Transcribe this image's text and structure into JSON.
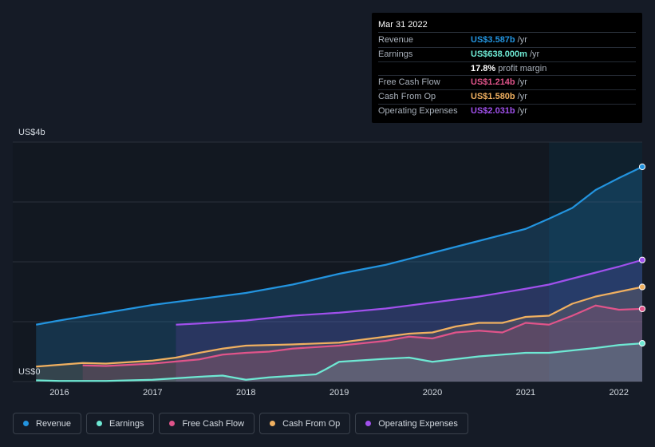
{
  "tooltip": {
    "date": "Mar 31 2022",
    "rows": [
      {
        "label": "Revenue",
        "value": "US$3.587b",
        "unit": "/yr",
        "color": "#2394df"
      },
      {
        "label": "Earnings",
        "value": "US$638.000m",
        "unit": "/yr",
        "color": "#6ee8d3"
      },
      {
        "label": "",
        "value": "17.8%",
        "unit": "profit margin",
        "color": "#ffffff"
      },
      {
        "label": "Free Cash Flow",
        "value": "US$1.214b",
        "unit": "/yr",
        "color": "#e0548a"
      },
      {
        "label": "Cash From Op",
        "value": "US$1.580b",
        "unit": "/yr",
        "color": "#f0b060"
      },
      {
        "label": "Operating Expenses",
        "value": "US$2.031b",
        "unit": "/yr",
        "color": "#a050ec"
      }
    ]
  },
  "legend": [
    {
      "label": "Revenue",
      "color": "#2394df"
    },
    {
      "label": "Earnings",
      "color": "#6ee8d3"
    },
    {
      "label": "Free Cash Flow",
      "color": "#e0548a"
    },
    {
      "label": "Cash From Op",
      "color": "#f0b060"
    },
    {
      "label": "Operating Expenses",
      "color": "#a050ec"
    }
  ],
  "chart_data": {
    "type": "area",
    "y_top_label": "US$4b",
    "y_bottom_label": "US$0",
    "ylim": [
      0,
      4
    ],
    "xlim": [
      2015.5,
      2022.25
    ],
    "x_ticks": [
      "2016",
      "2017",
      "2018",
      "2019",
      "2020",
      "2021",
      "2022"
    ],
    "highlight_start": 2021.25,
    "series": [
      {
        "name": "Revenue",
        "color": "#2394df",
        "points": [
          [
            2015.75,
            0.95
          ],
          [
            2016.0,
            1.02
          ],
          [
            2016.5,
            1.15
          ],
          [
            2017.0,
            1.28
          ],
          [
            2017.5,
            1.38
          ],
          [
            2018.0,
            1.48
          ],
          [
            2018.5,
            1.62
          ],
          [
            2019.0,
            1.8
          ],
          [
            2019.5,
            1.95
          ],
          [
            2020.0,
            2.15
          ],
          [
            2020.5,
            2.35
          ],
          [
            2021.0,
            2.55
          ],
          [
            2021.25,
            2.72
          ],
          [
            2021.5,
            2.9
          ],
          [
            2021.75,
            3.2
          ],
          [
            2022.0,
            3.4
          ],
          [
            2022.25,
            3.587
          ]
        ]
      },
      {
        "name": "Earnings",
        "color": "#6ee8d3",
        "points": [
          [
            2015.75,
            0.02
          ],
          [
            2016.0,
            0.01
          ],
          [
            2016.5,
            0.01
          ],
          [
            2017.0,
            0.03
          ],
          [
            2017.5,
            0.08
          ],
          [
            2017.75,
            0.1
          ],
          [
            2018.0,
            0.03
          ],
          [
            2018.25,
            0.07
          ],
          [
            2018.75,
            0.12
          ],
          [
            2018.85,
            0.2
          ],
          [
            2019.0,
            0.33
          ],
          [
            2019.5,
            0.38
          ],
          [
            2019.75,
            0.4
          ],
          [
            2020.0,
            0.33
          ],
          [
            2020.5,
            0.42
          ],
          [
            2021.0,
            0.48
          ],
          [
            2021.25,
            0.48
          ],
          [
            2021.5,
            0.52
          ],
          [
            2021.75,
            0.56
          ],
          [
            2022.0,
            0.61
          ],
          [
            2022.25,
            0.638
          ]
        ]
      },
      {
        "name": "Free Cash Flow",
        "color": "#e0548a",
        "points": [
          [
            2016.25,
            0.27
          ],
          [
            2016.5,
            0.26
          ],
          [
            2017.0,
            0.3
          ],
          [
            2017.5,
            0.37
          ],
          [
            2017.75,
            0.45
          ],
          [
            2018.0,
            0.48
          ],
          [
            2018.25,
            0.5
          ],
          [
            2018.5,
            0.55
          ],
          [
            2019.0,
            0.6
          ],
          [
            2019.5,
            0.68
          ],
          [
            2019.75,
            0.75
          ],
          [
            2020.0,
            0.72
          ],
          [
            2020.25,
            0.82
          ],
          [
            2020.5,
            0.85
          ],
          [
            2020.75,
            0.82
          ],
          [
            2021.0,
            0.98
          ],
          [
            2021.25,
            0.95
          ],
          [
            2021.5,
            1.1
          ],
          [
            2021.75,
            1.27
          ],
          [
            2022.0,
            1.2
          ],
          [
            2022.25,
            1.214
          ]
        ]
      },
      {
        "name": "Cash From Op",
        "color": "#f0b060",
        "points": [
          [
            2015.75,
            0.25
          ],
          [
            2016.0,
            0.28
          ],
          [
            2016.25,
            0.31
          ],
          [
            2016.5,
            0.3
          ],
          [
            2017.0,
            0.35
          ],
          [
            2017.25,
            0.4
          ],
          [
            2017.5,
            0.48
          ],
          [
            2017.75,
            0.55
          ],
          [
            2018.0,
            0.6
          ],
          [
            2018.5,
            0.62
          ],
          [
            2019.0,
            0.65
          ],
          [
            2019.5,
            0.75
          ],
          [
            2019.75,
            0.8
          ],
          [
            2020.0,
            0.82
          ],
          [
            2020.25,
            0.92
          ],
          [
            2020.5,
            0.98
          ],
          [
            2020.75,
            0.98
          ],
          [
            2021.0,
            1.08
          ],
          [
            2021.25,
            1.1
          ],
          [
            2021.5,
            1.3
          ],
          [
            2021.75,
            1.42
          ],
          [
            2022.0,
            1.5
          ],
          [
            2022.25,
            1.58
          ]
        ]
      },
      {
        "name": "Operating Expenses",
        "color": "#a050ec",
        "points": [
          [
            2017.25,
            0.95
          ],
          [
            2017.5,
            0.97
          ],
          [
            2018.0,
            1.02
          ],
          [
            2018.5,
            1.1
          ],
          [
            2019.0,
            1.15
          ],
          [
            2019.5,
            1.22
          ],
          [
            2020.0,
            1.32
          ],
          [
            2020.5,
            1.42
          ],
          [
            2021.0,
            1.55
          ],
          [
            2021.25,
            1.62
          ],
          [
            2021.5,
            1.72
          ],
          [
            2021.75,
            1.82
          ],
          [
            2022.0,
            1.92
          ],
          [
            2022.25,
            2.031
          ]
        ]
      }
    ]
  }
}
